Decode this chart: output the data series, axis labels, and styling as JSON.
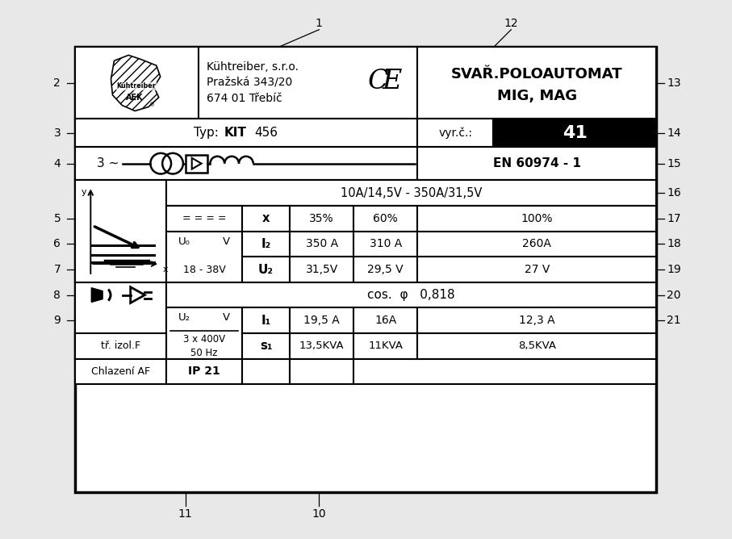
{
  "bg_color": "#e8e8e8",
  "title_line1": "SVAŘ.POLOAUTOMAT",
  "title_line2": "MIG, MAG",
  "company_line1": "Kühtreiber, s.r.o.",
  "company_line2": "Pražská 343/20",
  "company_line3": "674 01 Třebíč",
  "typ_label": "Typ: KIT 456",
  "vyr_label": "vyr.č.:",
  "vyr_value": "41",
  "standard": "EN 60974 - 1",
  "current_range": "10A/14,5V - 350A/31,5V",
  "duty_cycles": [
    "35%",
    "60%",
    "100%"
  ],
  "I2_values": [
    "350 A",
    "310 A",
    "260A"
  ],
  "U2_values": [
    "31,5V",
    "29,5 V",
    "27 V"
  ],
  "cos_phi_text": "cos.  φ   0,818",
  "I1_values": [
    "19,5 A",
    "16A",
    "12,3 A"
  ],
  "S1_values": [
    "13,5KVA",
    "11KVA",
    "8,5KVA"
  ],
  "trizol": "tř. izol.F",
  "chlazeni": "Chlazení AF",
  "IP": "IP 21",
  "ref_nums_top": [
    [
      "1",
      0.42
    ],
    [
      "12",
      0.75
    ]
  ],
  "ref_nums_left": [
    [
      "2",
      0
    ],
    [
      "3",
      1
    ],
    [
      "4",
      2
    ],
    [
      "5",
      4
    ],
    [
      "6",
      5
    ],
    [
      "7",
      6
    ],
    [
      "8",
      7
    ],
    [
      "9",
      8
    ]
  ],
  "ref_nums_right": [
    [
      "13",
      0
    ],
    [
      "14",
      1
    ],
    [
      "15",
      2
    ],
    [
      "16",
      3
    ],
    [
      "17",
      4
    ],
    [
      "18",
      5
    ],
    [
      "19",
      6
    ],
    [
      "20",
      7
    ],
    [
      "21",
      8
    ]
  ],
  "ref_nums_bottom": [
    [
      "11",
      0.19
    ],
    [
      "10",
      0.42
    ]
  ]
}
